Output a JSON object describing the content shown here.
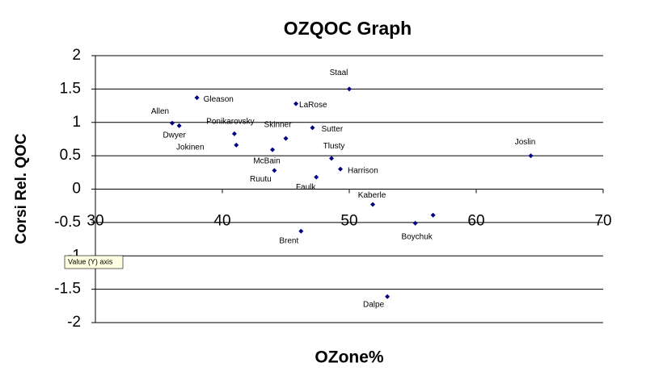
{
  "chart_data": {
    "type": "scatter",
    "title": "OZQOC Graph",
    "x_label": "OZone%",
    "y_label": "Corsi Rel. QOC",
    "tooltip": "Value (Y) axis",
    "color": "#000080",
    "grid": true,
    "xlim": [
      30,
      70
    ],
    "xticks": [
      30,
      40,
      50,
      60,
      70
    ],
    "ylim": [
      -2,
      2
    ],
    "yticks": [
      2,
      1.5,
      1,
      0.5,
      0,
      -0.5,
      -1,
      -1.5,
      -2
    ],
    "labels": [
      "Staal",
      "Gleason",
      "LaRose",
      "Allen",
      "Dwyer",
      "Ponikarovsky",
      "Skinner",
      "Sutter",
      "Jokinen",
      "McBain",
      "Tlusty",
      "Joslin",
      "Harrison",
      "Ruutu",
      "Faulk",
      "Kaberle",
      "Boychuk",
      null,
      "Brent",
      "Dalpe"
    ],
    "x": [
      50,
      38,
      45.8,
      36.05,
      36.6,
      40.95,
      45,
      47.1,
      41.1,
      43.95,
      48.6,
      64.3,
      49.3,
      44.1,
      47.4,
      51.85,
      55.2,
      56.6,
      46.2,
      53
    ],
    "values": [
      1.5,
      1.37,
      1.28,
      0.99,
      0.95,
      0.83,
      0.76,
      0.92,
      0.66,
      0.59,
      0.46,
      0.5,
      0.3,
      0.28,
      0.18,
      -0.23,
      -0.51,
      -0.39,
      -0.63,
      -1.61
    ]
  }
}
